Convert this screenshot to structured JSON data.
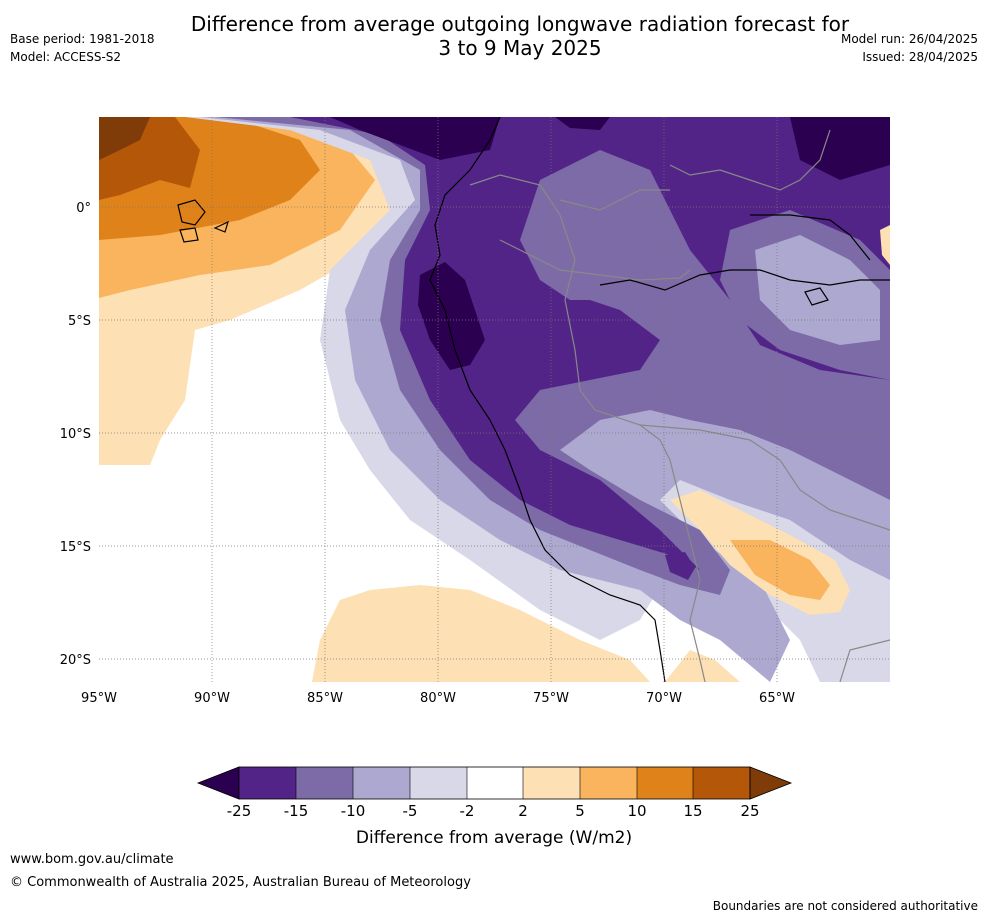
{
  "header": {
    "title_line1": "Difference from average outgoing longwave radiation forecast for",
    "title_line2": "3 to 9 May 2025",
    "base_period": "Base period: 1981-2018",
    "model": "Model: ACCESS-S2",
    "model_run": "Model run: 26/04/2025",
    "issued": "Issued: 28/04/2025"
  },
  "map": {
    "lat_labels": [
      "0°",
      "5°S",
      "10°S",
      "15°S",
      "20°S"
    ],
    "lon_labels": [
      "95°W",
      "90°W",
      "85°W",
      "80°W",
      "75°W",
      "70°W",
      "65°W"
    ]
  },
  "colorbar": {
    "title": "Difference from average (W/m2)",
    "tick_labels": [
      "-25",
      "-15",
      "-10",
      "-5",
      "-2",
      "2",
      "5",
      "10",
      "15",
      "25"
    ],
    "colors": [
      "#2c0050",
      "#522488",
      "#7d6ba8",
      "#ada8cf",
      "#d8d8e9",
      "#ffffff",
      "#fde0b3",
      "#f9b45d",
      "#e0821a",
      "#b45709",
      "#7f3b08"
    ]
  },
  "footer": {
    "website": "www.bom.gov.au/climate",
    "copyright": "© Commonwealth of Australia 2025, Australian Bureau of Meteorology",
    "disclaimer": "Boundaries are not considered authoritative"
  }
}
